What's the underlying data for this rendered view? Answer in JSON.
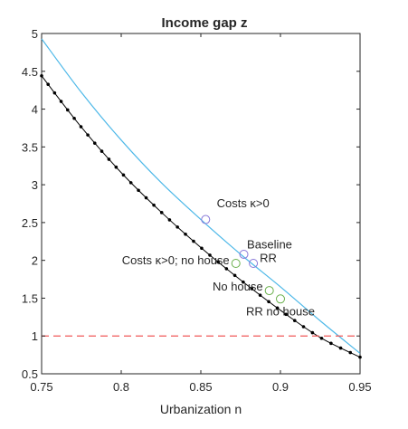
{
  "chart_data": {
    "type": "line",
    "title": "Income gap z",
    "xlabel": "Urbanization n",
    "ylabel": "",
    "xlim": [
      0.75,
      0.95
    ],
    "ylim": [
      0.5,
      5
    ],
    "xticks": [
      0.75,
      0.8,
      0.85,
      0.9,
      0.95
    ],
    "xtick_labels": [
      "0.75",
      "0.8",
      "0.85",
      "0.9",
      "0.95"
    ],
    "yticks": [
      0.5,
      1,
      1.5,
      2,
      2.5,
      3,
      3.5,
      4,
      4.5,
      5
    ],
    "ytick_labels": [
      "0.5",
      "1",
      "1.5",
      "2",
      "2.5",
      "3",
      "3.5",
      "4",
      "4.5",
      "5"
    ],
    "grid": false,
    "series": [
      {
        "style": "solid",
        "color": "#4db8e8",
        "x": [
          0.75,
          0.775,
          0.8,
          0.825,
          0.85,
          0.875,
          0.9,
          0.925,
          0.95
        ],
        "y": [
          4.93,
          4.22,
          3.59,
          3.03,
          2.54,
          2.08,
          1.65,
          1.2,
          0.77
        ]
      },
      {
        "style": "dotted-markers",
        "color": "#000000",
        "x": [
          0.75,
          0.775,
          0.8,
          0.825,
          0.85,
          0.875,
          0.9,
          0.925,
          0.95
        ],
        "y": [
          4.44,
          3.76,
          3.16,
          2.64,
          2.17,
          1.74,
          1.34,
          0.98,
          0.72
        ]
      },
      {
        "style": "dashed",
        "color": "#f05a5a",
        "x": [
          0.75,
          0.95
        ],
        "y": [
          1,
          1
        ]
      }
    ],
    "markers": [
      {
        "x": 0.853,
        "y": 2.54,
        "color": "#8878d8"
      },
      {
        "x": 0.877,
        "y": 2.08,
        "color": "#8878d8"
      },
      {
        "x": 0.883,
        "y": 1.96,
        "color": "#8878d8"
      },
      {
        "x": 0.872,
        "y": 1.96,
        "color": "#6ab04c"
      },
      {
        "x": 0.893,
        "y": 1.6,
        "color": "#6ab04c"
      },
      {
        "x": 0.9,
        "y": 1.49,
        "color": "#6ab04c"
      }
    ],
    "annotations": [
      {
        "text": "Costs κ>0",
        "x": 0.86,
        "y": 2.7,
        "anchor": "start"
      },
      {
        "text": "Baseline",
        "x": 0.879,
        "y": 2.16,
        "anchor": "start"
      },
      {
        "text": "RR",
        "x": 0.887,
        "y": 1.98,
        "anchor": "start"
      },
      {
        "text": "Costs κ>0; no house",
        "x": 0.868,
        "y": 1.95,
        "anchor": "end"
      },
      {
        "text": "No house",
        "x": 0.889,
        "y": 1.6,
        "anchor": "end"
      },
      {
        "text": "RR no house",
        "x": 0.9,
        "y": 1.27,
        "anchor": "middle"
      }
    ]
  }
}
